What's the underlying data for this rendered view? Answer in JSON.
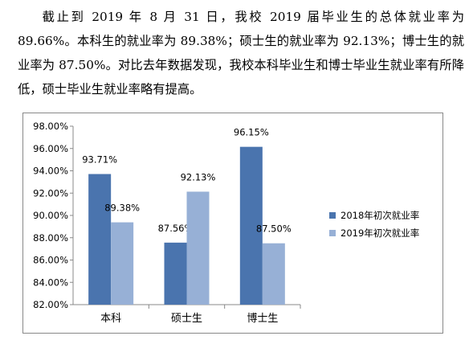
{
  "text": {
    "paragraph": "截止到 2019 年 8 月 31 日，我校 2019 届毕业生的总体就业率为 89.66%。本科生的就业率为 89.38%；硕士生的就业率为 92.13%；博士生的就业率为 87.50%。对比去年数据发现，我校本科毕业生和博士毕业生就业率有所降低，硕士毕业生就业率略有提高。"
  },
  "chart_data": {
    "type": "bar",
    "categories": [
      "本科",
      "硕士生",
      "博士生"
    ],
    "series": [
      {
        "name": "2018年初次就业率",
        "values": [
          93.71,
          87.56,
          96.15
        ],
        "labels": [
          "93.71%",
          "87.56%",
          "96.15%"
        ],
        "color": "#4a74ae"
      },
      {
        "name": "2019年初次就业率",
        "values": [
          89.38,
          92.13,
          87.5
        ],
        "labels": [
          "89.38%",
          "92.13%",
          "87.50%"
        ],
        "color": "#97b0d6"
      }
    ],
    "ylim": [
      82,
      98
    ],
    "yticks": [
      82,
      84,
      86,
      88,
      90,
      92,
      94,
      96,
      98
    ],
    "ytick_labels": [
      "82.00%",
      "84.00%",
      "86.00%",
      "88.00%",
      "90.00%",
      "92.00%",
      "94.00%",
      "96.00%",
      "98.00%"
    ],
    "grid": false,
    "legend_position": "right"
  }
}
